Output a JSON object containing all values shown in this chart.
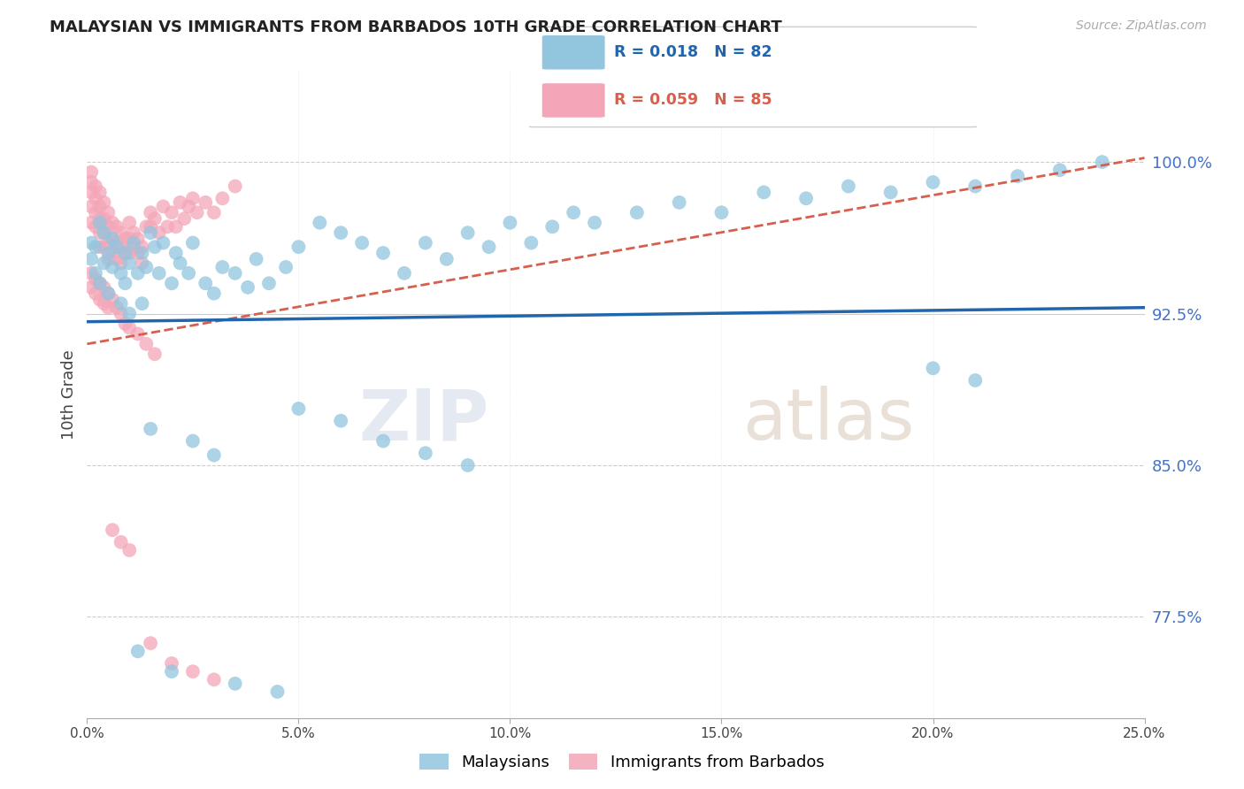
{
  "title": "MALAYSIAN VS IMMIGRANTS FROM BARBADOS 10TH GRADE CORRELATION CHART",
  "source": "Source: ZipAtlas.com",
  "ylabel": "10th Grade",
  "ytick_labels": [
    "77.5%",
    "85.0%",
    "92.5%",
    "100.0%"
  ],
  "ytick_values": [
    0.775,
    0.85,
    0.925,
    1.0
  ],
  "ymin": 0.725,
  "ymax": 1.045,
  "xmin": 0.0,
  "xmax": 0.25,
  "xtick_values": [
    0.0,
    0.05,
    0.1,
    0.15,
    0.2,
    0.25
  ],
  "xtick_labels": [
    "0.0%",
    "5.0%",
    "10.0%",
    "15.0%",
    "20.0%",
    "25.0%"
  ],
  "legend_R1": "R = 0.018",
  "legend_N1": "N = 82",
  "legend_R2": "R = 0.059",
  "legend_N2": "N = 85",
  "blue_color": "#92c5de",
  "pink_color": "#f4a6b8",
  "trend_blue_color": "#2166ac",
  "trend_pink_color": "#d6604d",
  "watermark": "ZIPatlas",
  "blue_trend_y0": 0.921,
  "blue_trend_y1": 0.928,
  "pink_trend_y0": 0.91,
  "pink_trend_y1": 1.002,
  "blue_scatter_x": [
    0.001,
    0.001,
    0.002,
    0.002,
    0.003,
    0.003,
    0.004,
    0.004,
    0.005,
    0.005,
    0.006,
    0.006,
    0.007,
    0.008,
    0.008,
    0.009,
    0.009,
    0.01,
    0.01,
    0.011,
    0.012,
    0.013,
    0.013,
    0.014,
    0.015,
    0.016,
    0.017,
    0.018,
    0.02,
    0.021,
    0.022,
    0.024,
    0.025,
    0.028,
    0.03,
    0.032,
    0.035,
    0.038,
    0.04,
    0.043,
    0.047,
    0.05,
    0.055,
    0.06,
    0.065,
    0.07,
    0.075,
    0.08,
    0.085,
    0.09,
    0.095,
    0.1,
    0.105,
    0.11,
    0.115,
    0.12,
    0.13,
    0.14,
    0.15,
    0.16,
    0.17,
    0.18,
    0.19,
    0.2,
    0.21,
    0.22,
    0.23,
    0.24,
    0.2,
    0.21,
    0.05,
    0.06,
    0.07,
    0.08,
    0.09,
    0.03,
    0.025,
    0.015,
    0.012,
    0.02,
    0.035,
    0.045
  ],
  "blue_scatter_y": [
    0.952,
    0.96,
    0.958,
    0.945,
    0.97,
    0.94,
    0.965,
    0.95,
    0.955,
    0.935,
    0.948,
    0.962,
    0.958,
    0.945,
    0.93,
    0.94,
    0.955,
    0.95,
    0.925,
    0.96,
    0.945,
    0.955,
    0.93,
    0.948,
    0.965,
    0.958,
    0.945,
    0.96,
    0.94,
    0.955,
    0.95,
    0.945,
    0.96,
    0.94,
    0.935,
    0.948,
    0.945,
    0.938,
    0.952,
    0.94,
    0.948,
    0.958,
    0.97,
    0.965,
    0.96,
    0.955,
    0.945,
    0.96,
    0.952,
    0.965,
    0.958,
    0.97,
    0.96,
    0.968,
    0.975,
    0.97,
    0.975,
    0.98,
    0.975,
    0.985,
    0.982,
    0.988,
    0.985,
    0.99,
    0.988,
    0.993,
    0.996,
    1.0,
    0.898,
    0.892,
    0.878,
    0.872,
    0.862,
    0.856,
    0.85,
    0.855,
    0.862,
    0.868,
    0.758,
    0.748,
    0.742,
    0.738
  ],
  "pink_scatter_x": [
    0.001,
    0.001,
    0.001,
    0.001,
    0.001,
    0.002,
    0.002,
    0.002,
    0.002,
    0.003,
    0.003,
    0.003,
    0.003,
    0.003,
    0.004,
    0.004,
    0.004,
    0.004,
    0.005,
    0.005,
    0.005,
    0.005,
    0.006,
    0.006,
    0.006,
    0.007,
    0.007,
    0.007,
    0.008,
    0.008,
    0.008,
    0.009,
    0.009,
    0.01,
    0.01,
    0.01,
    0.011,
    0.011,
    0.012,
    0.012,
    0.013,
    0.013,
    0.014,
    0.015,
    0.015,
    0.016,
    0.017,
    0.018,
    0.019,
    0.02,
    0.021,
    0.022,
    0.023,
    0.024,
    0.025,
    0.026,
    0.028,
    0.03,
    0.032,
    0.035,
    0.001,
    0.001,
    0.002,
    0.002,
    0.003,
    0.003,
    0.004,
    0.004,
    0.005,
    0.005,
    0.006,
    0.007,
    0.008,
    0.009,
    0.01,
    0.012,
    0.014,
    0.016,
    0.006,
    0.008,
    0.01,
    0.015,
    0.02,
    0.025,
    0.03
  ],
  "pink_scatter_y": [
    0.995,
    0.99,
    0.985,
    0.978,
    0.97,
    0.988,
    0.982,
    0.975,
    0.968,
    0.985,
    0.978,
    0.972,
    0.965,
    0.958,
    0.98,
    0.972,
    0.965,
    0.958,
    0.975,
    0.968,
    0.96,
    0.952,
    0.97,
    0.962,
    0.955,
    0.968,
    0.96,
    0.952,
    0.965,
    0.958,
    0.95,
    0.962,
    0.955,
    0.97,
    0.962,
    0.955,
    0.965,
    0.958,
    0.962,
    0.955,
    0.958,
    0.95,
    0.968,
    0.975,
    0.968,
    0.972,
    0.965,
    0.978,
    0.968,
    0.975,
    0.968,
    0.98,
    0.972,
    0.978,
    0.982,
    0.975,
    0.98,
    0.975,
    0.982,
    0.988,
    0.945,
    0.938,
    0.942,
    0.935,
    0.94,
    0.932,
    0.938,
    0.93,
    0.935,
    0.928,
    0.932,
    0.928,
    0.925,
    0.92,
    0.918,
    0.915,
    0.91,
    0.905,
    0.818,
    0.812,
    0.808,
    0.762,
    0.752,
    0.748,
    0.744
  ]
}
